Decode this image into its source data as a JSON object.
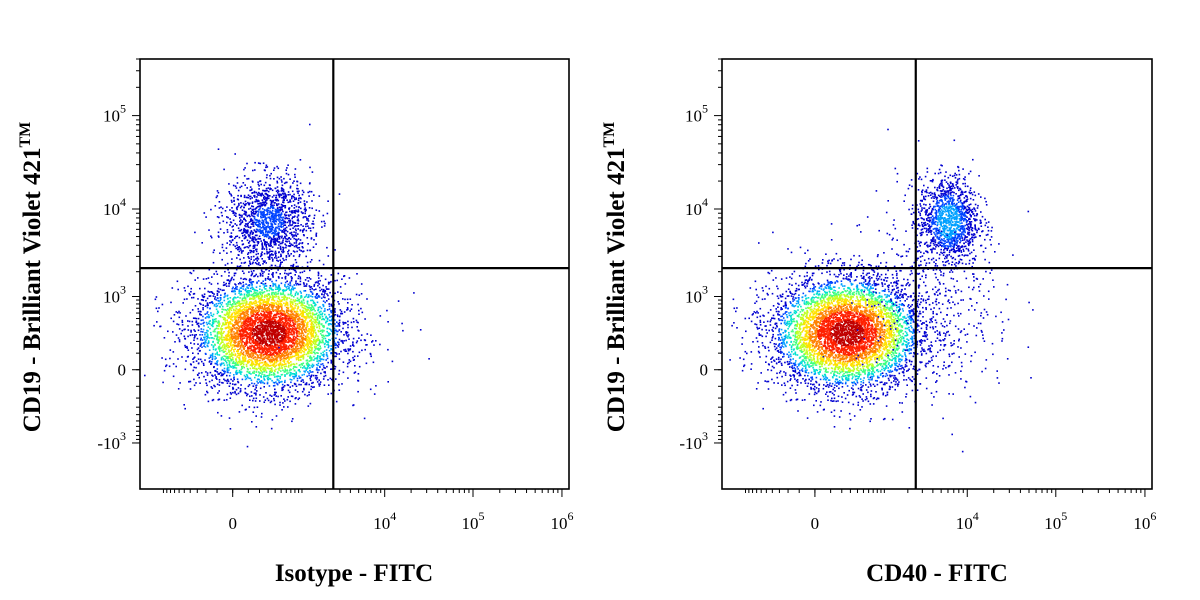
{
  "chart_data": [
    {
      "type": "scatter",
      "title": "",
      "xlabel": "Isotype - FITC",
      "ylabel": "CD19 - Brilliant Violet 421",
      "ylabel_mark": "TM",
      "x_scale": "biexponential",
      "y_scale": "biexponential",
      "xlim": [
        -2000,
        1200000
      ],
      "ylim": [
        -3500,
        400000
      ],
      "x_ticks": [
        {
          "value": 0,
          "label": "0"
        },
        {
          "value": 10000,
          "label": "10",
          "exp": "4"
        },
        {
          "value": 100000,
          "label": "10",
          "exp": "5"
        },
        {
          "value": 1000000,
          "label": "10",
          "exp": "6"
        }
      ],
      "y_ticks": [
        {
          "value": 100000,
          "label": "10",
          "exp": "5"
        },
        {
          "value": 10000,
          "label": "10",
          "exp": "4"
        },
        {
          "value": 1000,
          "label": "10",
          "exp": "3"
        },
        {
          "value": 0,
          "label": "0"
        },
        {
          "value": -1000,
          "label": "-10",
          "exp": "3"
        }
      ],
      "gates": {
        "x": 2500,
        "y": 2200
      },
      "grid": false,
      "legend": "none",
      "populations": [
        {
          "name": "",
          "center_x": 300,
          "center_y": 300,
          "count": 5200,
          "density": "high"
        },
        {
          "name": "",
          "center_x": 300,
          "center_y": 7500,
          "count": 1400,
          "density": "low"
        },
        {
          "name": "",
          "center_x": 6000,
          "center_y": 700,
          "count": 14,
          "density": "sparse"
        }
      ]
    },
    {
      "type": "scatter",
      "title": "",
      "xlabel": "CD40 - FITC",
      "ylabel": "CD19 - Brilliant Violet 421",
      "ylabel_mark": "TM",
      "x_scale": "biexponential",
      "y_scale": "biexponential",
      "xlim": [
        -2000,
        1200000
      ],
      "ylim": [
        -3500,
        400000
      ],
      "x_ticks": [
        {
          "value": 0,
          "label": "0"
        },
        {
          "value": 10000,
          "label": "10",
          "exp": "4"
        },
        {
          "value": 100000,
          "label": "10",
          "exp": "5"
        },
        {
          "value": 1000000,
          "label": "10",
          "exp": "6"
        }
      ],
      "y_ticks": [
        {
          "value": 100000,
          "label": "10",
          "exp": "5"
        },
        {
          "value": 10000,
          "label": "10",
          "exp": "4"
        },
        {
          "value": 1000,
          "label": "10",
          "exp": "3"
        },
        {
          "value": 0,
          "label": "0"
        },
        {
          "value": -1000,
          "label": "-10",
          "exp": "3"
        }
      ],
      "gates": {
        "x": 2500,
        "y": 2200
      },
      "grid": false,
      "legend": "none",
      "populations": [
        {
          "name": "",
          "center_x": 250,
          "center_y": 300,
          "count": 5200,
          "density": "high"
        },
        {
          "name": "",
          "center_x": 6000,
          "center_y": 7500,
          "count": 1300,
          "density": "medium"
        },
        {
          "name": "",
          "center_x": 4500,
          "center_y": 500,
          "count": 320,
          "density": "sparse"
        },
        {
          "name": "",
          "center_x": 2000,
          "center_y": 5000,
          "count": 70,
          "density": "sparse"
        }
      ]
    }
  ],
  "colors": {
    "frame": "#000000",
    "density_scale": [
      "#0000d0",
      "#0044ff",
      "#00a0ff",
      "#00e0d0",
      "#40ff80",
      "#c0ff20",
      "#ffe000",
      "#ff8000",
      "#ff2000",
      "#c00000"
    ]
  }
}
